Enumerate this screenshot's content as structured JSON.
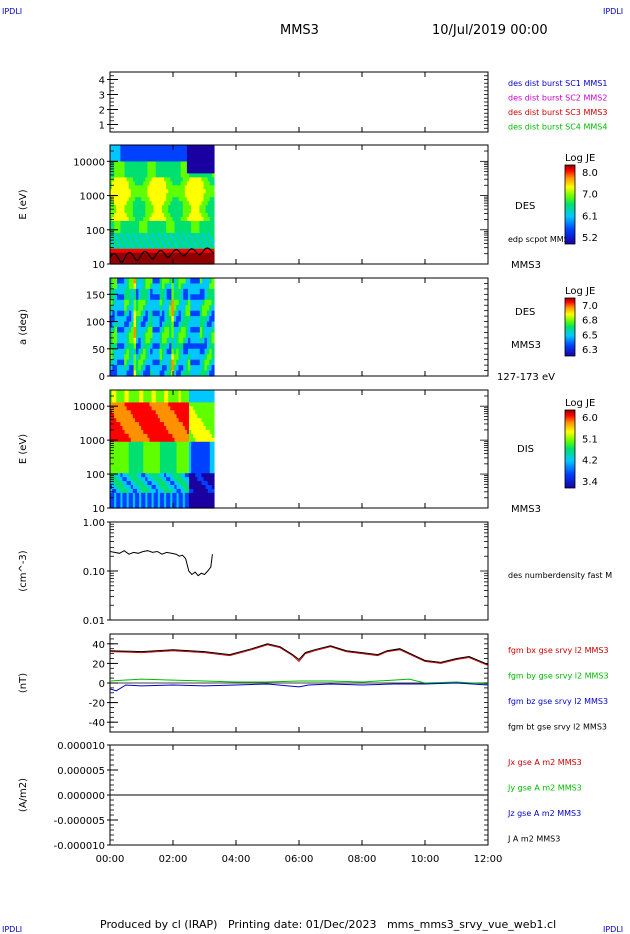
{
  "corners": {
    "tl": "IPDLI",
    "tr": "IPDLI",
    "bl": "IPDLI",
    "br": "IPDLI"
  },
  "header": {
    "title": "MMS3",
    "date": "10/Jul/2019 00:00"
  },
  "footer": "Produced by cl (IRAP)   Printing date: 01/Dec/2023   mms_mms3_srvy_vue_web1.cl",
  "colors": {
    "blue": "#0000cc",
    "magenta": "#cc00cc",
    "red": "#cc0000",
    "green": "#00bb00",
    "black": "#000000",
    "spectrum": [
      "#1a00a0",
      "#0040ff",
      "#00c8ff",
      "#00e070",
      "#60ff00",
      "#ffff00",
      "#ff9000",
      "#ff0000",
      "#900000"
    ]
  },
  "time_axis": {
    "labels": [
      "00:00",
      "02:00",
      "04:00",
      "06:00",
      "08:00",
      "10:00",
      "12:00"
    ]
  },
  "chart_data": [
    {
      "type": "heatmap",
      "panel": "burst-flags",
      "yticks": [
        "1",
        "2",
        "3",
        "4"
      ],
      "ylim": [
        0.5,
        4.5
      ],
      "legend": [
        {
          "text": "des dist burst SC1 MMS1",
          "color": "#0000cc"
        },
        {
          "text": "des dist burst SC2 MMS2",
          "color": "#cc00cc"
        },
        {
          "text": "des dist burst SC3 MMS3",
          "color": "#cc0000"
        },
        {
          "text": "des dist burst SC4 MMS4",
          "color": "#00bb00"
        }
      ]
    },
    {
      "type": "heatmap",
      "panel": "des-energy",
      "ylabel": "E (eV)",
      "yticks": [
        "10",
        "100",
        "1000",
        "10000"
      ],
      "ylim": [
        10,
        30000
      ],
      "x_range_hours": [
        0,
        3.3
      ],
      "side_labels": [
        "DES",
        "MMS3"
      ],
      "overlay_label": "edp scpot MMS3",
      "colorbar": {
        "title": "Log JE",
        "ticks": [
          "8.0",
          "7.0",
          "6.1",
          "5.2"
        ]
      }
    },
    {
      "type": "heatmap",
      "panel": "des-pitch",
      "ylabel": "a (deg)",
      "yticks": [
        "0",
        "50",
        "100",
        "150"
      ],
      "ylim": [
        0,
        180
      ],
      "x_range_hours": [
        0,
        3.3
      ],
      "side_labels": [
        "DES",
        "MMS3"
      ],
      "energy_label": "127-173 eV",
      "colorbar": {
        "title": "Log JE",
        "ticks": [
          "7.0",
          "6.8",
          "6.5",
          "6.3"
        ]
      }
    },
    {
      "type": "heatmap",
      "panel": "dis-energy",
      "ylabel": "E (eV)",
      "yticks": [
        "10",
        "100",
        "1000",
        "10000"
      ],
      "ylim": [
        10,
        30000
      ],
      "x_range_hours": [
        0,
        3.3
      ],
      "side_labels": [
        "DIS",
        "MMS3"
      ],
      "colorbar": {
        "title": "Log JE",
        "ticks": [
          "6.0",
          "5.1",
          "4.2",
          "3.4"
        ]
      }
    },
    {
      "type": "line",
      "panel": "density",
      "ylabel": "(cm^-3)",
      "yticks": [
        "0.01",
        "0.10",
        "1.00"
      ],
      "ylim": [
        0.01,
        1.0
      ],
      "series": [
        {
          "name": "des numberdensity fast M",
          "color": "#000000",
          "x": [
            0.0,
            0.15,
            0.3,
            0.45,
            0.6,
            0.75,
            0.9,
            1.05,
            1.2,
            1.35,
            1.5,
            1.65,
            1.8,
            1.95,
            2.1,
            2.2,
            2.3,
            2.4,
            2.5,
            2.6,
            2.7,
            2.8,
            2.9,
            3.0,
            3.1,
            3.2,
            3.25
          ],
          "y": [
            0.25,
            0.24,
            0.23,
            0.26,
            0.22,
            0.24,
            0.23,
            0.25,
            0.26,
            0.24,
            0.25,
            0.22,
            0.24,
            0.23,
            0.22,
            0.2,
            0.21,
            0.18,
            0.1,
            0.085,
            0.095,
            0.08,
            0.09,
            0.085,
            0.1,
            0.12,
            0.22
          ]
        }
      ]
    },
    {
      "type": "line",
      "panel": "magnetic-field",
      "ylabel": "(nT)",
      "yticks": [
        "-40",
        "-20",
        "0",
        "20",
        "40"
      ],
      "ylim": [
        -50,
        50
      ],
      "series": [
        {
          "name": "fgm bx gse srvy l2 MMS3",
          "color": "#cc0000",
          "x": [
            0,
            1,
            2,
            3,
            3.8,
            4.5,
            5.0,
            5.4,
            5.8,
            6.0,
            6.2,
            6.5,
            7.0,
            7.5,
            8.0,
            8.5,
            8.8,
            9.2,
            9.6,
            10.0,
            10.5,
            11.0,
            11.4,
            12.0
          ],
          "y": [
            32,
            31,
            33,
            31,
            28,
            34,
            39,
            36,
            28,
            22,
            30,
            33,
            37,
            32,
            30,
            28,
            32,
            34,
            28,
            22,
            20,
            24,
            26,
            18
          ]
        },
        {
          "name": "fgm by gse srvy l2 MMS3",
          "color": "#00bb00",
          "x": [
            0,
            1,
            2,
            3,
            4,
            5,
            6,
            7,
            8,
            9,
            9.5,
            10,
            11,
            12
          ],
          "y": [
            2,
            4,
            3,
            2,
            1,
            1,
            2,
            2,
            1,
            3,
            4,
            0,
            1,
            -1
          ]
        },
        {
          "name": "fgm bz gse srvy l2 MMS3",
          "color": "#0000cc",
          "x": [
            0,
            0.2,
            0.5,
            1,
            2,
            3,
            4,
            5,
            6,
            6.3,
            7,
            8,
            9,
            10,
            11,
            12
          ],
          "y": [
            -6,
            -8,
            -2,
            -3,
            -2,
            -3,
            -2,
            -1,
            -4,
            -2,
            -1,
            -2,
            -1,
            -1,
            0,
            -2
          ]
        },
        {
          "name": "fgm bt gse srvy l2 MMS3",
          "color": "#000000",
          "x": [
            0,
            1,
            2,
            3,
            3.8,
            4.5,
            5.0,
            5.4,
            5.8,
            6.0,
            6.2,
            6.5,
            7.0,
            7.5,
            8.0,
            8.5,
            8.8,
            9.2,
            9.6,
            10.0,
            10.5,
            11.0,
            11.4,
            12.0
          ],
          "y": [
            33,
            32,
            34,
            32,
            29,
            35,
            40,
            37,
            29,
            24,
            31,
            34,
            38,
            33,
            31,
            29,
            33,
            35,
            29,
            23,
            21,
            25,
            27,
            19
          ]
        }
      ]
    },
    {
      "type": "line",
      "panel": "current-density",
      "ylabel": "(A/m2)",
      "yticks": [
        "-0.000010",
        "-0.000005",
        "0.000000",
        "0.000005",
        "0.000010"
      ],
      "ylim": [
        -1e-05,
        1e-05
      ],
      "series": [
        {
          "name": "Jx gse A m2 MMS3",
          "color": "#cc0000",
          "x": [
            0,
            12
          ],
          "y": [
            0,
            0
          ]
        },
        {
          "name": "Jy gse A m2 MMS3",
          "color": "#00bb00",
          "x": [
            0,
            12
          ],
          "y": [
            0,
            0
          ]
        },
        {
          "name": "Jz gse A m2 MMS3",
          "color": "#0000cc",
          "x": [
            0,
            12
          ],
          "y": [
            0,
            0
          ]
        },
        {
          "name": "J A m2 MMS3",
          "color": "#000000",
          "x": [
            0,
            12
          ],
          "y": [
            0,
            0
          ]
        }
      ]
    }
  ]
}
